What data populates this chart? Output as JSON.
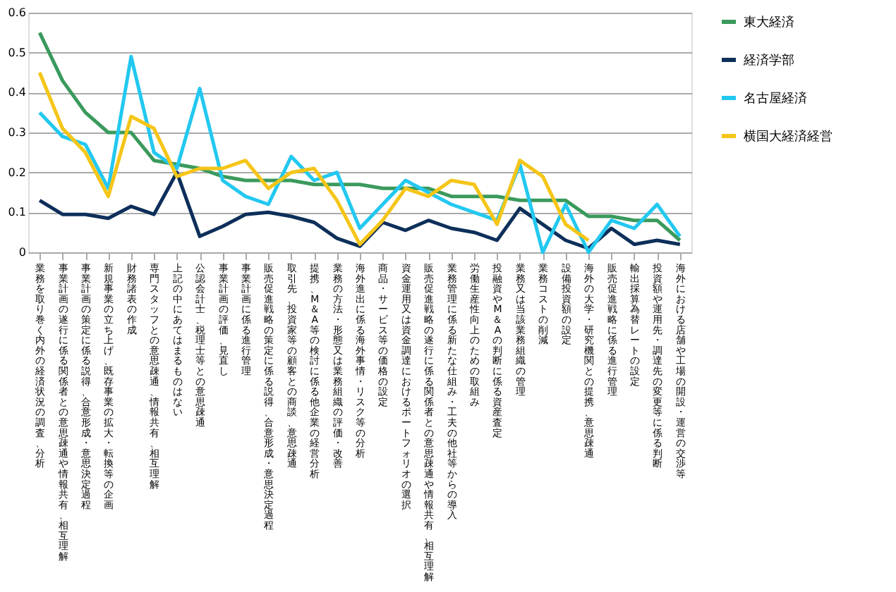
{
  "chart_data": {
    "type": "line",
    "categories": [
      "業務を取り巻く内外の経済状況の調査、分析",
      "事業計画の遂行に係る関係者との意思疎通や情報共有、相互理解",
      "事業計画の策定に係る説得、合意形成・意思決定過程",
      "新規事業の立ち上げ、既存事業の拡大・転換等の企画",
      "財務諸表の作成",
      "専門スタッフとの意思疎通、情報共有、相互理解",
      "上記の中にあてはまるものはない",
      "公認会計士、税理士等との意思疎通",
      "事業計画の評価、見直し",
      "事業計画に係る進行管理",
      "販売促進戦略の策定に係る説得、合意形成・意思決定過程",
      "取引先、投資家等の顧客との商談、意思疎通",
      "提携、M＆A等の検討に係る他企業の経営分析",
      "業務の方法・形態又は業務組織の評価・改善",
      "海外進出に係る海外事情・リスク等の分析",
      "商品・サービス等の価格の設定",
      "資金運用又は資金調達におけるポートフォリオの選択",
      "販売促進戦略の遂行に係る関係者との意思疎通や情報共有、相互理解",
      "業務管理に係る新たな仕組み・工夫の他社等からの導入",
      "労働生産性向上のための取組み",
      "投融資やM＆Aの判断に係る資産査定",
      "業務又は当該業務組織の管理",
      "業務コストの削減",
      "設備投資額の設定",
      "海外の大学・研究機関との提携、意思疎通",
      "販売促進戦略に係る進行管理",
      "輸出採算為替レートの設定",
      "投資額や運用先・調達先の変更等に係る判断",
      "海外における店舗や工場の開設・運営の交渉等"
    ],
    "series": [
      {
        "name": "東大経済",
        "color": "#3a9a5c",
        "values": [
          0.55,
          0.43,
          0.35,
          0.3,
          0.3,
          0.23,
          0.22,
          0.21,
          0.19,
          0.18,
          0.18,
          0.18,
          0.17,
          0.17,
          0.17,
          0.16,
          0.16,
          0.16,
          0.14,
          0.14,
          0.14,
          0.13,
          0.13,
          0.13,
          0.09,
          0.09,
          0.08,
          0.08,
          0.03
        ]
      },
      {
        "name": "経済学部",
        "color": "#0d2f5a",
        "values": [
          0.13,
          0.095,
          0.095,
          0.085,
          0.115,
          0.095,
          0.2,
          0.04,
          0.065,
          0.095,
          0.1,
          0.09,
          0.075,
          0.035,
          0.015,
          0.075,
          0.055,
          0.08,
          0.06,
          0.05,
          0.03,
          0.11,
          0.07,
          0.03,
          0.01,
          0.06,
          0.02,
          0.03,
          0.02
        ]
      },
      {
        "name": "名古屋経済",
        "color": "#22c8f0",
        "values": [
          0.35,
          0.29,
          0.27,
          0.16,
          0.49,
          0.25,
          0.21,
          0.41,
          0.18,
          0.14,
          0.12,
          0.24,
          0.18,
          0.2,
          0.06,
          0.12,
          0.18,
          0.15,
          0.12,
          0.1,
          0.08,
          0.22,
          0.0,
          0.12,
          0.0,
          0.08,
          0.06,
          0.12,
          0.04
        ]
      },
      {
        "name": "横国大経済経営",
        "color": "#f5c518",
        "values": [
          0.45,
          0.31,
          0.25,
          0.14,
          0.34,
          0.31,
          0.19,
          0.21,
          0.21,
          0.23,
          0.16,
          0.2,
          0.21,
          0.13,
          0.02,
          0.08,
          0.16,
          0.14,
          0.18,
          0.17,
          0.07,
          0.23,
          0.19,
          0.07,
          0.03,
          null,
          null,
          null,
          null
        ]
      }
    ],
    "ylim": [
      0,
      0.6
    ],
    "yticks": [
      0,
      0.1,
      0.2,
      0.3,
      0.4,
      0.5,
      0.6
    ],
    "grid": "y",
    "legend": "right",
    "marker": "none",
    "line_style": "solid"
  }
}
